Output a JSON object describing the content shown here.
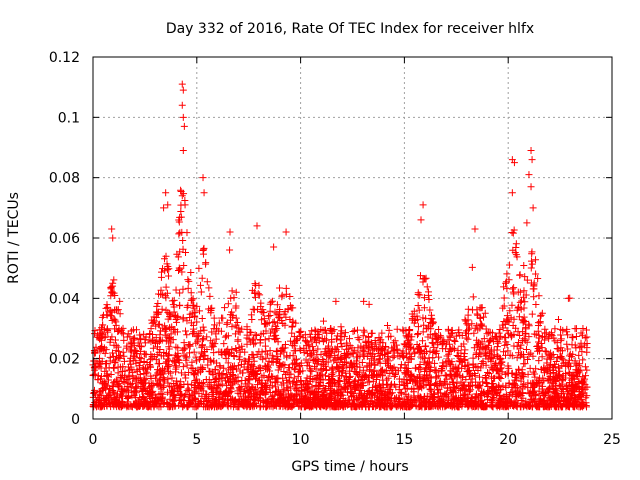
{
  "chart_data": {
    "type": "scatter",
    "title": "Day 332 of 2016, Rate Of TEC Index for receiver hlfx",
    "xlabel": "GPS time / hours",
    "ylabel": "ROTI / TECUs",
    "xlim": [
      0,
      25
    ],
    "ylim": [
      0,
      0.12
    ],
    "xticks": [
      0,
      5,
      10,
      15,
      20,
      25
    ],
    "xtick_labels": [
      "0",
      "5",
      "10",
      "15",
      "20",
      "25"
    ],
    "yticks": [
      0,
      0.02,
      0.04,
      0.06,
      0.08,
      0.1,
      0.12
    ],
    "ytick_labels": [
      "0",
      "0.02",
      "0.04",
      "0.06",
      "0.08",
      "0.1",
      "0.12"
    ],
    "grid": true,
    "marker": "plus",
    "color": "#ff0000",
    "series": [
      {
        "name": "ROTI",
        "x_range": [
          0,
          23.8
        ],
        "baseline_band": [
          0.004,
          0.03
        ],
        "notable_points": [
          {
            "x": 4.3,
            "y": 0.111
          },
          {
            "x": 4.35,
            "y": 0.109
          },
          {
            "x": 4.3,
            "y": 0.104
          },
          {
            "x": 4.35,
            "y": 0.1
          },
          {
            "x": 4.4,
            "y": 0.097
          },
          {
            "x": 4.35,
            "y": 0.089
          },
          {
            "x": 4.3,
            "y": 0.074
          },
          {
            "x": 5.3,
            "y": 0.08
          },
          {
            "x": 5.35,
            "y": 0.075
          },
          {
            "x": 3.5,
            "y": 0.075
          },
          {
            "x": 3.4,
            "y": 0.07
          },
          {
            "x": 3.6,
            "y": 0.071
          },
          {
            "x": 0.9,
            "y": 0.063
          },
          {
            "x": 0.95,
            "y": 0.06
          },
          {
            "x": 6.6,
            "y": 0.062
          },
          {
            "x": 7.9,
            "y": 0.064
          },
          {
            "x": 9.3,
            "y": 0.062
          },
          {
            "x": 8.7,
            "y": 0.057
          },
          {
            "x": 15.9,
            "y": 0.071
          },
          {
            "x": 15.8,
            "y": 0.066
          },
          {
            "x": 18.4,
            "y": 0.063
          },
          {
            "x": 20.2,
            "y": 0.086
          },
          {
            "x": 20.3,
            "y": 0.085
          },
          {
            "x": 20.2,
            "y": 0.075
          },
          {
            "x": 21.1,
            "y": 0.089
          },
          {
            "x": 21.15,
            "y": 0.086
          },
          {
            "x": 21.0,
            "y": 0.081
          },
          {
            "x": 21.1,
            "y": 0.077
          },
          {
            "x": 21.2,
            "y": 0.07
          },
          {
            "x": 20.9,
            "y": 0.065
          },
          {
            "x": 11.7,
            "y": 0.039
          },
          {
            "x": 13.3,
            "y": 0.038
          },
          {
            "x": 22.9,
            "y": 0.04
          },
          {
            "x": 23.6,
            "y": 0.03
          }
        ]
      }
    ]
  }
}
